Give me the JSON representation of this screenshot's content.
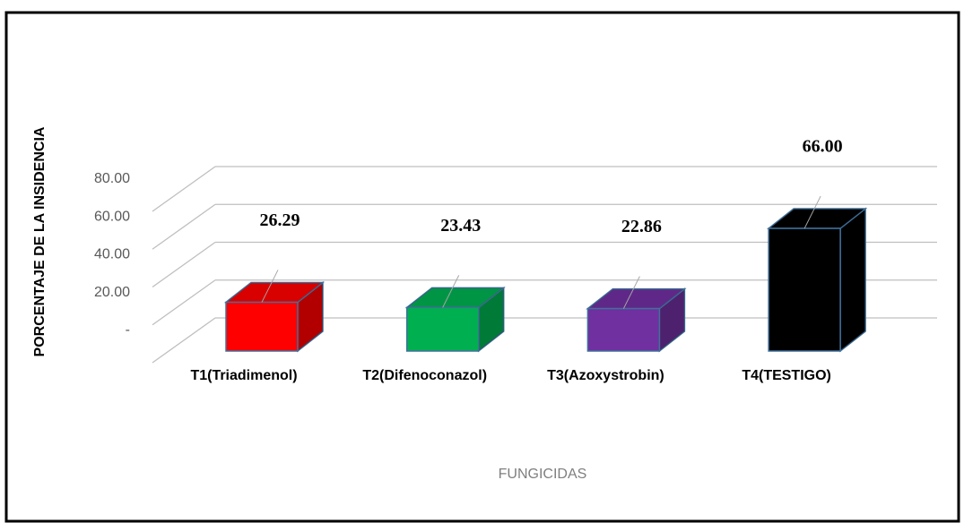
{
  "chart_data": {
    "type": "bar3d",
    "y_axis_label": "PORCENTAJE DE LA INSIDENCIA",
    "x_axis_label": "FUNGICIDAS",
    "categories": [
      "T1(Triadimenol)",
      "T2(Difenoconazol)",
      "T3(Azoxystrobin)",
      "T4(TESTIGO)"
    ],
    "values": [
      26.29,
      23.43,
      22.86,
      66
    ],
    "value_labels": [
      "26.29",
      "23.43",
      "22.86",
      "66.00"
    ],
    "colors": [
      "#ff0000",
      "#00b050",
      "#7030a0",
      "#000000"
    ],
    "ylim": [
      0,
      80
    ],
    "yticks": [
      {
        "value": 0,
        "label": "-"
      },
      {
        "value": 20,
        "label": "20.00"
      },
      {
        "value": 40,
        "label": "40.00"
      },
      {
        "value": 60,
        "label": "60.00"
      },
      {
        "value": 80,
        "label": "80.00"
      }
    ],
    "grid": true
  }
}
